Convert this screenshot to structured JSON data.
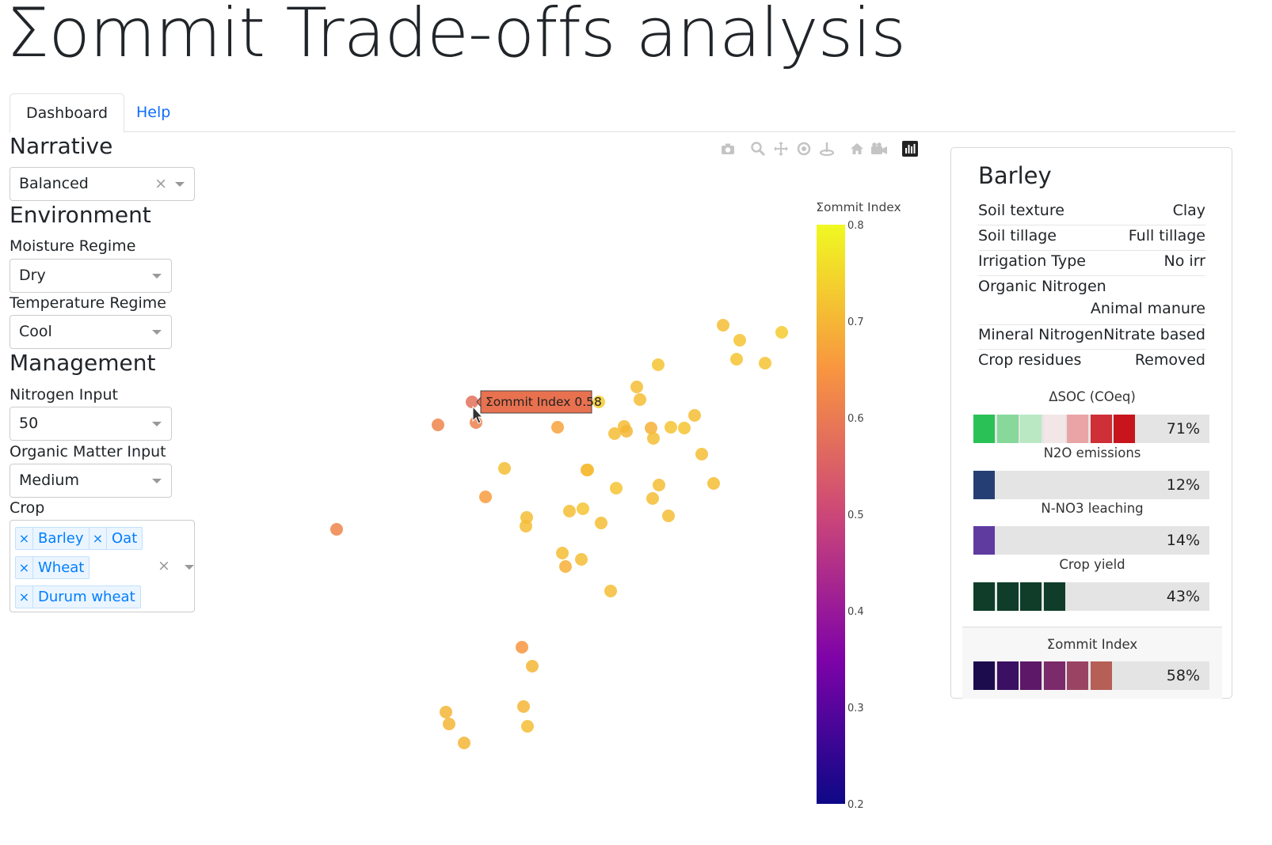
{
  "app": {
    "title": "Σommit Trade-offs analysis"
  },
  "tabs": [
    {
      "label": "Dashboard",
      "active": true
    },
    {
      "label": "Help",
      "active": false
    }
  ],
  "sidebar": {
    "narrative": {
      "heading": "Narrative",
      "value": "Balanced",
      "clear_icon": "×"
    },
    "environment": {
      "heading": "Environment",
      "moisture": {
        "label": "Moisture Regime",
        "value": "Dry"
      },
      "temperature": {
        "label": "Temperature Regime",
        "value": "Cool"
      }
    },
    "management": {
      "heading": "Management",
      "nitrogen": {
        "label": "Nitrogen Input",
        "value": "50"
      },
      "organic": {
        "label": "Organic Matter Input",
        "value": "Medium"
      },
      "crop": {
        "label": "Crop",
        "selected": [
          "Barley",
          "Oat",
          "Wheat",
          "Durum wheat"
        ],
        "remove_icon": "×",
        "clear_icon": "×"
      }
    }
  },
  "modebar": [
    "camera-icon",
    "zoom-icon",
    "pan-icon",
    "orbit-icon",
    "turntable-icon",
    "home-icon",
    "video-camera-icon",
    "plotly-logo-icon"
  ],
  "chart_data": {
    "type": "scatter",
    "colorbar": {
      "title": "Σommit Index",
      "min": 0.2,
      "max": 0.8,
      "ticks": [
        "0.8",
        "0.7",
        "0.6",
        "0.5",
        "0.4",
        "0.3",
        "0.2"
      ],
      "colorscale": "plasma"
    },
    "tooltip": {
      "text": "Σommit Index 0.58"
    }
  },
  "panel": {
    "title": "Barley",
    "properties": [
      {
        "key": "Soil texture",
        "value": "Clay"
      },
      {
        "key": "Soil tillage",
        "value": "Full tillage"
      },
      {
        "key": "Irrigation Type",
        "value": "No irr"
      },
      {
        "key": "Organic Nitrogen",
        "value": "Animal manure"
      },
      {
        "key": "Mineral Nitrogen",
        "value": "Nitrate based"
      },
      {
        "key": "Crop residues",
        "value": "Removed"
      }
    ],
    "metrics": [
      {
        "label": "ΔSOC (COeq)",
        "value": 0.71,
        "percent": "71%"
      },
      {
        "label": "N2O emissions",
        "value": 0.12,
        "percent": "12%"
      },
      {
        "label": "N-NO3 leaching",
        "value": 0.14,
        "percent": "14%"
      },
      {
        "label": "Crop yield",
        "value": 0.43,
        "percent": "43%"
      }
    ],
    "index": {
      "label": "Σommit Index",
      "value": 0.58,
      "percent": "58%"
    }
  },
  "colors": {
    "accent": "#0d6efd",
    "chip": "#007eff",
    "n2o": "#253f74",
    "leaching": "#5f3ba0",
    "yield": "#0f3d2a"
  }
}
